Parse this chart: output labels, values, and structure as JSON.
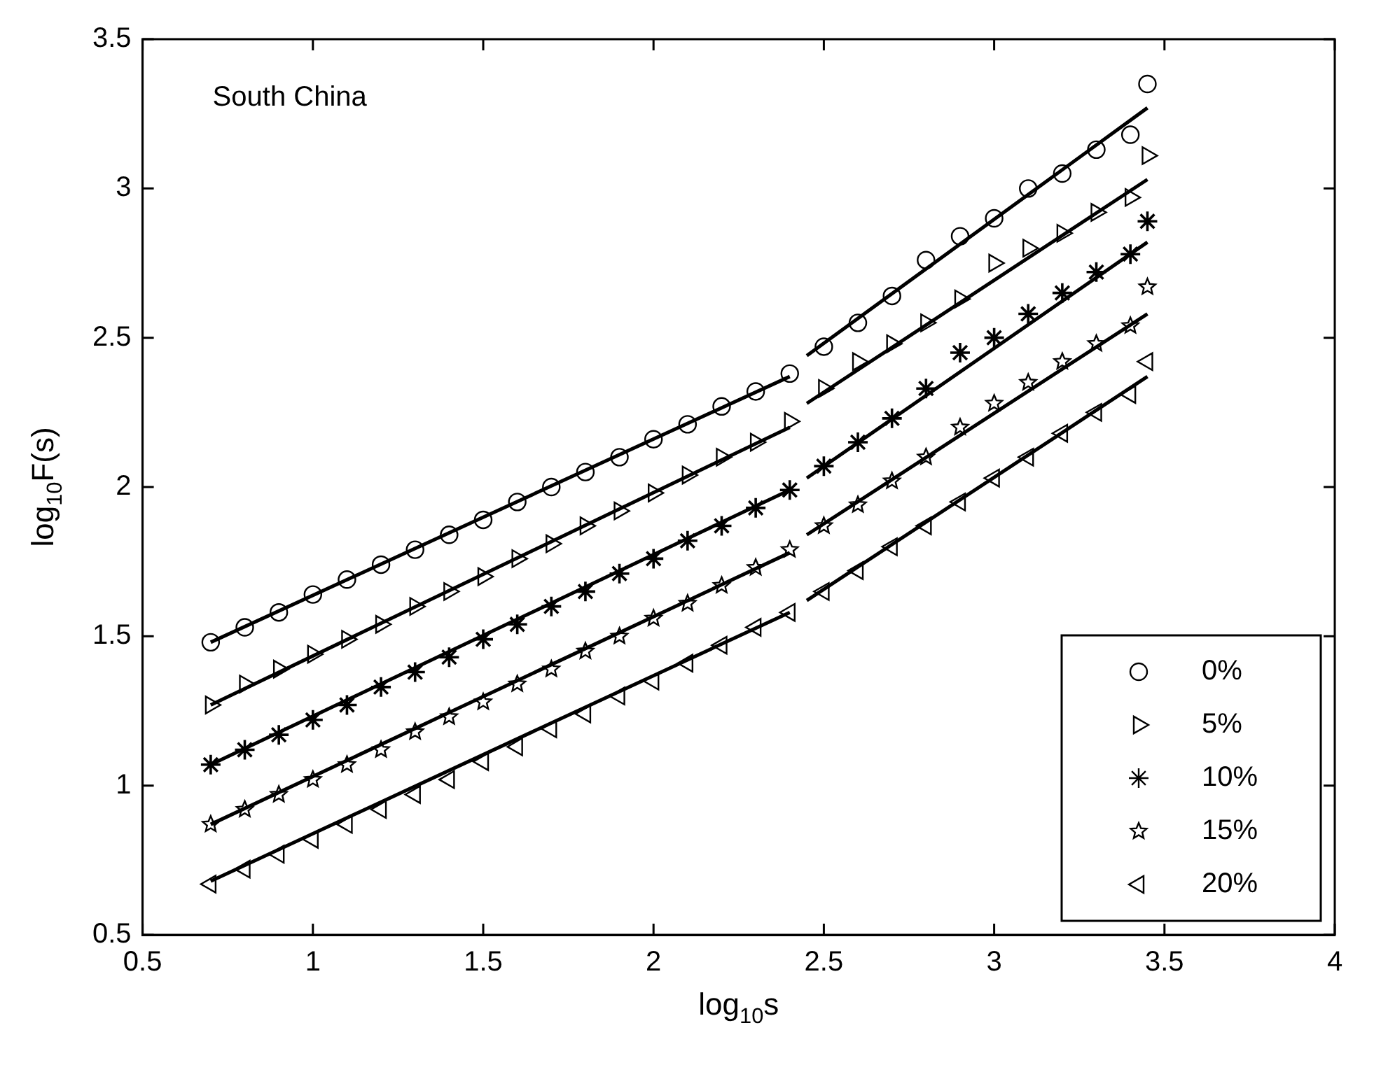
{
  "chart_data": {
    "type": "scatter",
    "xlabel": "log$_{10}$s",
    "ylabel": "log$_{10}$F(s)",
    "annotations": [
      "South China"
    ],
    "xlim": [
      0.5,
      4
    ],
    "xticks": [
      0.5,
      1,
      1.5,
      2,
      2.5,
      3,
      3.5,
      4
    ],
    "ylim": [
      0.5,
      3.5
    ],
    "yticks": [
      0.5,
      1,
      1.5,
      2,
      2.5,
      3,
      3.5
    ],
    "grid": false,
    "legend": "bottom right",
    "x": [
      0.7,
      0.8,
      0.9,
      1.0,
      1.1,
      1.2,
      1.3,
      1.4,
      1.5,
      1.6,
      1.7,
      1.8,
      1.9,
      2.0,
      2.1,
      2.2,
      2.3,
      2.4,
      2.5,
      2.6,
      2.7,
      2.8,
      2.9,
      3.0,
      3.1,
      3.2,
      3.3,
      3.4,
      3.45
    ],
    "series": [
      {
        "name": "0%",
        "color": "#000000",
        "marker": "circle",
        "values": [
          1.48,
          1.53,
          1.58,
          1.64,
          1.69,
          1.74,
          1.79,
          1.84,
          1.89,
          1.95,
          2.0,
          2.05,
          2.1,
          2.16,
          2.21,
          2.27,
          2.32,
          2.38,
          2.47,
          2.55,
          2.64,
          2.76,
          2.84,
          2.9,
          3.0,
          3.05,
          3.13,
          3.18,
          3.35
        ]
      },
      {
        "name": "5%",
        "color": "#000000",
        "marker": "triangle-right",
        "values": [
          1.27,
          1.34,
          1.39,
          1.44,
          1.49,
          1.54,
          1.6,
          1.65,
          1.7,
          1.76,
          1.81,
          1.87,
          1.92,
          1.98,
          2.04,
          2.1,
          2.15,
          2.22,
          2.33,
          2.42,
          2.48,
          2.55,
          2.63,
          2.75,
          2.8,
          2.85,
          2.92,
          2.97,
          3.11
        ]
      },
      {
        "name": "10%",
        "color": "#000000",
        "marker": "cross",
        "values": [
          1.07,
          1.12,
          1.17,
          1.22,
          1.27,
          1.33,
          1.38,
          1.43,
          1.49,
          1.54,
          1.6,
          1.65,
          1.71,
          1.76,
          1.82,
          1.87,
          1.93,
          1.99,
          2.07,
          2.15,
          2.23,
          2.33,
          2.45,
          2.5,
          2.58,
          2.65,
          2.72,
          2.78,
          2.89
        ]
      },
      {
        "name": "15%",
        "color": "#000000",
        "marker": "star",
        "values": [
          0.87,
          0.92,
          0.97,
          1.02,
          1.07,
          1.12,
          1.18,
          1.23,
          1.28,
          1.34,
          1.39,
          1.45,
          1.5,
          1.56,
          1.61,
          1.67,
          1.73,
          1.79,
          1.87,
          1.94,
          2.02,
          2.1,
          2.2,
          2.28,
          2.35,
          2.42,
          2.48,
          2.54,
          2.67
        ]
      },
      {
        "name": "20%",
        "color": "#000000",
        "marker": "triangle-left",
        "values": [
          0.67,
          0.72,
          0.77,
          0.82,
          0.87,
          0.92,
          0.97,
          1.02,
          1.08,
          1.13,
          1.19,
          1.24,
          1.3,
          1.35,
          1.41,
          1.47,
          1.53,
          1.58,
          1.65,
          1.72,
          1.8,
          1.87,
          1.95,
          2.03,
          2.1,
          2.18,
          2.25,
          2.31,
          2.42
        ]
      },
      {
        "type": "line",
        "color": "#000000",
        "marker": "none",
        "x": [
          0.7,
          2.4,
          2.42,
          2.45,
          3.45
        ],
        "values": [
          1.48,
          2.37,
          null,
          2.44,
          3.27
        ]
      },
      {
        "type": "line",
        "color": "#000000",
        "marker": "none",
        "x": [
          0.7,
          2.4,
          2.42,
          2.45,
          3.45
        ],
        "values": [
          1.27,
          2.2,
          null,
          2.28,
          3.03
        ]
      },
      {
        "type": "line",
        "color": "#000000",
        "marker": "none",
        "x": [
          0.7,
          2.4,
          2.42,
          2.45,
          3.45
        ],
        "values": [
          1.07,
          1.99,
          null,
          2.03,
          2.82
        ]
      },
      {
        "type": "line",
        "color": "#000000",
        "marker": "none",
        "x": [
          0.7,
          2.4,
          2.42,
          2.45,
          3.45
        ],
        "values": [
          0.87,
          1.78,
          null,
          1.84,
          2.58
        ]
      },
      {
        "type": "line",
        "color": "#000000",
        "marker": "none",
        "x": [
          0.7,
          2.4,
          2.42,
          2.45,
          3.45
        ],
        "values": [
          0.68,
          1.58,
          null,
          1.62,
          2.37
        ]
      }
    ]
  }
}
